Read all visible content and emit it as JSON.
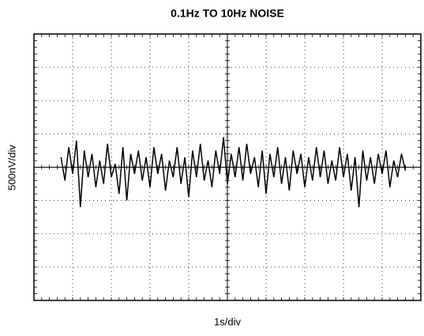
{
  "chart_data": {
    "type": "line",
    "title": "0.1Hz TO 10Hz NOISE",
    "xlabel": "1s/div",
    "ylabel": "500nV/div",
    "xlim": [
      0,
      10
    ],
    "ylim": [
      -4,
      4
    ],
    "xticks": [
      0,
      1,
      2,
      3,
      4,
      5,
      6,
      7,
      8,
      9,
      10
    ],
    "yticks": [
      -4,
      -3,
      -2,
      -1,
      0,
      1,
      2,
      3,
      4
    ],
    "grid": true,
    "series": [
      {
        "color": "#000000",
        "x": [
          0.7,
          0.8,
          0.9,
          1.0,
          1.1,
          1.2,
          1.3,
          1.4,
          1.5,
          1.6,
          1.7,
          1.8,
          1.9,
          2.0,
          2.1,
          2.2,
          2.3,
          2.4,
          2.5,
          2.6,
          2.7,
          2.8,
          2.9,
          3.0,
          3.1,
          3.2,
          3.3,
          3.4,
          3.5,
          3.6,
          3.7,
          3.8,
          3.9,
          4.0,
          4.1,
          4.2,
          4.3,
          4.4,
          4.5,
          4.6,
          4.7,
          4.8,
          4.9,
          5.0,
          5.1,
          5.2,
          5.3,
          5.4,
          5.5,
          5.6,
          5.7,
          5.8,
          5.9,
          6.0,
          6.1,
          6.2,
          6.3,
          6.4,
          6.5,
          6.6,
          6.7,
          6.8,
          6.9,
          7.0,
          7.1,
          7.2,
          7.3,
          7.4,
          7.5,
          7.6,
          7.7,
          7.8,
          7.9,
          8.0,
          8.1,
          8.2,
          8.3,
          8.4,
          8.5,
          8.6,
          8.7,
          8.8,
          8.9,
          9.0,
          9.1,
          9.2,
          9.3,
          9.4,
          9.5,
          9.6
        ],
        "values": [
          0.3,
          -0.4,
          0.6,
          -0.2,
          0.8,
          -1.2,
          0.5,
          -0.3,
          0.4,
          -0.6,
          0.2,
          -0.5,
          0.7,
          -0.3,
          0.1,
          -0.8,
          0.6,
          -1.0,
          0.4,
          -0.2,
          0.5,
          -0.4,
          0.3,
          -0.6,
          0.6,
          -0.2,
          0.4,
          -0.7,
          0.2,
          -0.3,
          0.6,
          -0.5,
          0.3,
          -0.9,
          0.5,
          -0.3,
          0.7,
          -0.4,
          0.2,
          -0.6,
          0.5,
          -0.2,
          0.9,
          -0.5,
          0.4,
          -0.3,
          0.6,
          -0.4,
          0.7,
          -0.2,
          0.3,
          -0.6,
          0.5,
          -0.8,
          0.4,
          -0.3,
          0.6,
          -0.5,
          0.3,
          -0.7,
          0.5,
          -0.2,
          0.4,
          -0.6,
          0.3,
          -0.4,
          0.6,
          -0.3,
          0.5,
          -0.5,
          0.2,
          -0.4,
          0.6,
          -0.3,
          0.4,
          -0.7,
          0.3,
          -1.2,
          0.5,
          -0.4,
          0.3,
          -0.5,
          0.4,
          -0.2,
          0.5,
          -0.6,
          0.2,
          -0.3,
          0.4,
          -0.1
        ]
      }
    ]
  }
}
